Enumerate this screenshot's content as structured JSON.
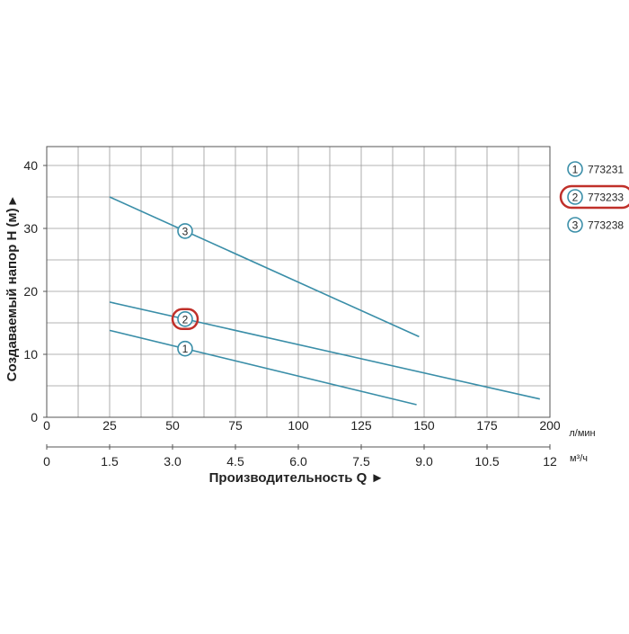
{
  "chart_data": {
    "type": "line",
    "title": "",
    "ylabel": "Создаваемый напор H (м) ▸",
    "xlabel": "Производительность Q ►",
    "ylim": [
      0,
      43
    ],
    "xlim": [
      0,
      200
    ],
    "x_unit_primary": "л/мин",
    "x_unit_secondary": "м³/ч",
    "x_ticks_primary": [
      0,
      25,
      50,
      75,
      100,
      125,
      150,
      175,
      200
    ],
    "x_ticks_secondary": [
      "0",
      "1.5",
      "3.0",
      "4.5",
      "6.0",
      "7.5",
      "9.0",
      "10.5",
      "12"
    ],
    "y_ticks": [
      0,
      10,
      20,
      30,
      40
    ],
    "grid": true,
    "legend_position": "right",
    "line_color": "#3a8ea8",
    "highlight_color": "#c0302a",
    "series": [
      {
        "name": "773231",
        "marker": "1",
        "highlighted": false,
        "x": [
          25,
          147
        ],
        "y": [
          13.8,
          2.0
        ]
      },
      {
        "name": "773233",
        "marker": "2",
        "highlighted": true,
        "x": [
          25,
          196
        ],
        "y": [
          18.3,
          2.9
        ]
      },
      {
        "name": "773238",
        "marker": "3",
        "highlighted": false,
        "x": [
          25,
          148
        ],
        "y": [
          35.0,
          12.8
        ]
      }
    ]
  }
}
